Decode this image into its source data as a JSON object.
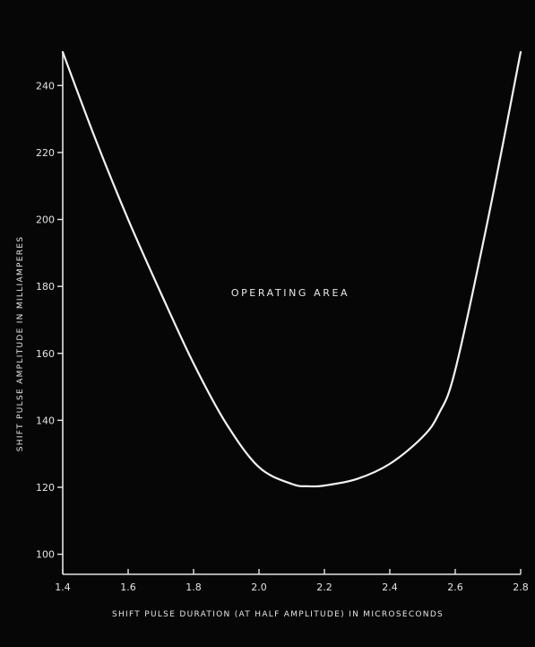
{
  "chart_data": {
    "type": "line",
    "title": "",
    "xlabel": "SHIFT PULSE DURATION (AT HALF AMPLITUDE) IN MICROSECONDS",
    "ylabel": "SHIFT PULSE AMPLITUDE IN MILLIAMPERES",
    "xlim": [
      1.4,
      2.8
    ],
    "ylim": [
      94,
      250
    ],
    "x_ticks": [
      "1.4",
      "1.6",
      "1.8",
      "2.0",
      "2.2",
      "2.4",
      "2.6",
      "2.8"
    ],
    "y_ticks": [
      "100",
      "120",
      "140",
      "160",
      "180",
      "200",
      "220",
      "240"
    ],
    "grid": false,
    "annotation": "OPERATING AREA",
    "colors": {
      "background": "#060606",
      "line": "#f2f2f2",
      "text": "#e4e4e4"
    },
    "series": [
      {
        "x": [
          1.4,
          1.5,
          1.6,
          1.7,
          1.8,
          1.9,
          2.0,
          2.1,
          2.15,
          2.2,
          2.3,
          2.4,
          2.5,
          2.55,
          2.6,
          2.7,
          2.8
        ],
        "y": [
          250,
          224,
          200,
          178,
          157,
          139,
          126,
          121,
          120.3,
          120.5,
          122.5,
          127,
          135,
          142,
          155,
          200,
          250
        ]
      }
    ]
  }
}
